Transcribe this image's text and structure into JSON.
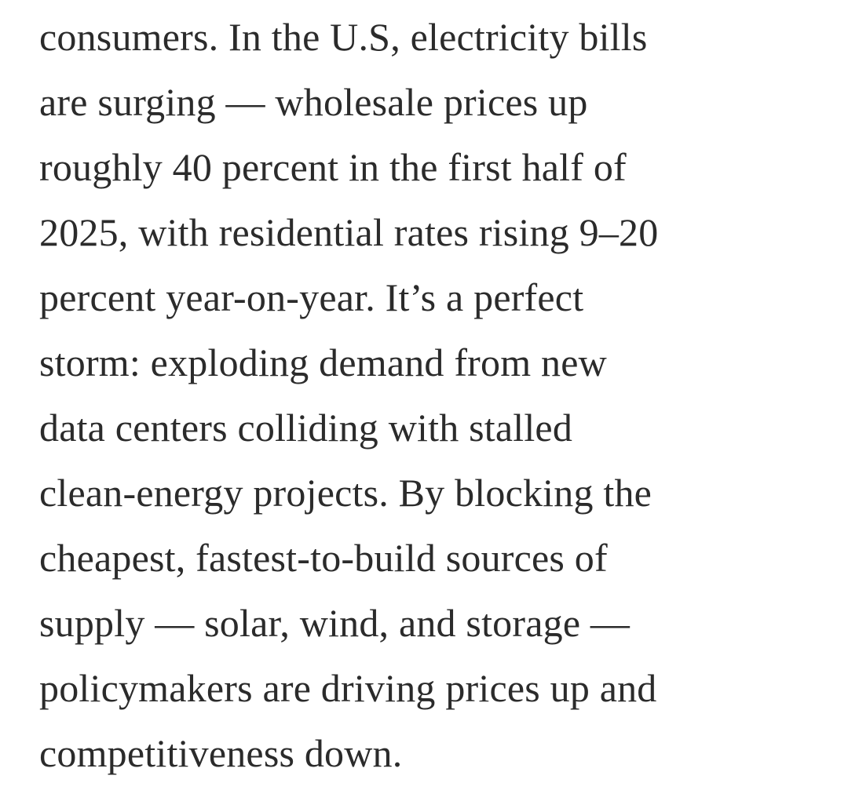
{
  "article": {
    "lines": [
      "consumers. In the U.S, electricity bills",
      "are surging — wholesale prices up",
      "roughly 40 percent in the first half of",
      "2025, with residential rates rising 9–20",
      "percent year-on-year. It’s a perfect",
      "storm: exploding demand from new",
      "data centers colliding with stalled",
      "clean-energy projects. By blocking the",
      "cheapest, fastest-to-build sources of",
      "supply — solar, wind, and storage —",
      "policymakers are driving prices up and",
      "competitiveness down."
    ]
  }
}
